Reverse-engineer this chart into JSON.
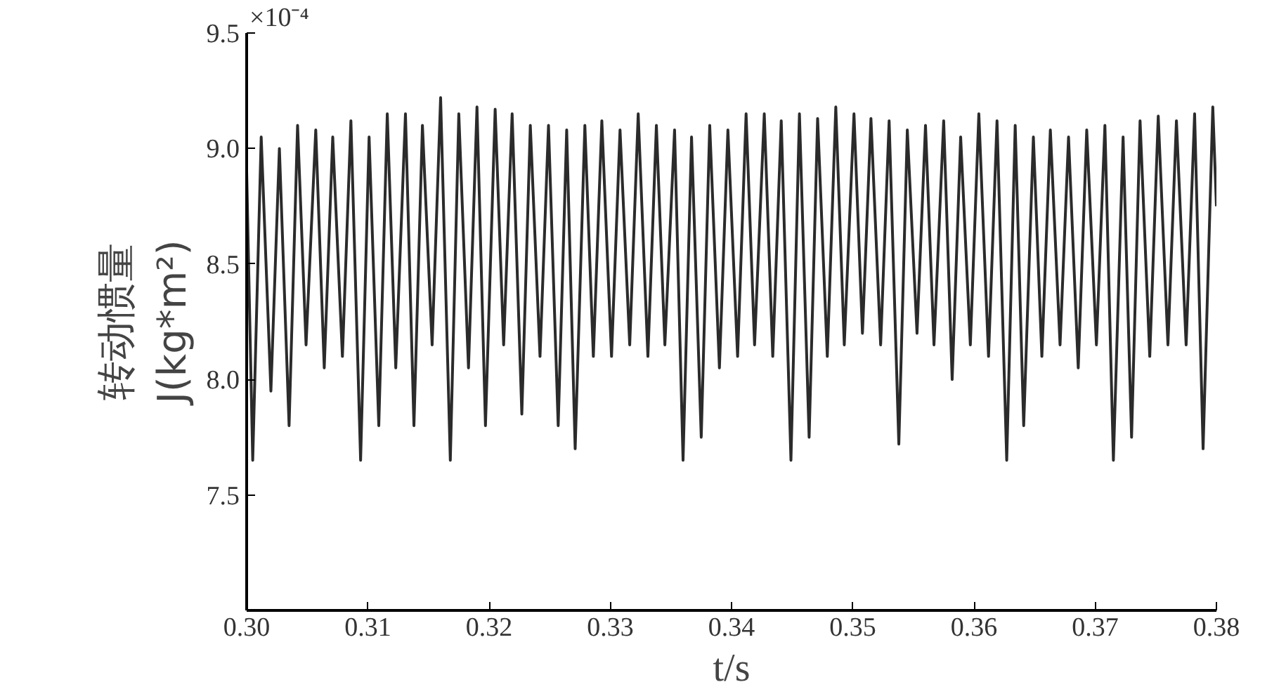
{
  "chart_data": {
    "type": "line",
    "xlabel": "t/s",
    "ylabel": "转动惯量\nJ(kg*m²)",
    "annotations": [
      "×10⁻⁴"
    ],
    "xlim": [
      0.3,
      0.38
    ],
    "ylim": [
      7.0,
      9.5
    ],
    "xticks": [
      {
        "value": 0.3,
        "label": "0.30"
      },
      {
        "value": 0.31,
        "label": "0.31"
      },
      {
        "value": 0.32,
        "label": "0.32"
      },
      {
        "value": 0.33,
        "label": "0.33"
      },
      {
        "value": 0.34,
        "label": "0.34"
      },
      {
        "value": 0.35,
        "label": "0.35"
      },
      {
        "value": 0.36,
        "label": "0.36"
      },
      {
        "value": 0.37,
        "label": "0.37"
      },
      {
        "value": 0.38,
        "label": "0.38"
      }
    ],
    "yticks": [
      7.5,
      {
        "value": 8.0,
        "label": "8.0"
      },
      8.5,
      {
        "value": 9.0,
        "label": "9.0"
      },
      9.5
    ],
    "grid": false,
    "marker": "none",
    "line_style": "solid",
    "series": [
      {
        "color": "#2b2b2b",
        "x": [
          0.3,
          0.3005,
          0.3012,
          0.302,
          0.3027,
          0.3035,
          0.3042,
          0.3049,
          0.3057,
          0.3064,
          0.3071,
          0.3079,
          0.3086,
          0.3094,
          0.3101,
          0.3109,
          0.3116,
          0.3123,
          0.3131,
          0.3138,
          0.3145,
          0.3153,
          0.316,
          0.3168,
          0.3175,
          0.3183,
          0.319,
          0.3197,
          0.3205,
          0.3212,
          0.3219,
          0.3227,
          0.3234,
          0.3242,
          0.3249,
          0.3257,
          0.3264,
          0.3271,
          0.3279,
          0.3286,
          0.3293,
          0.3301,
          0.3308,
          0.3316,
          0.3323,
          0.3331,
          0.3338,
          0.3345,
          0.3353,
          0.336,
          0.3367,
          0.3375,
          0.3382,
          0.339,
          0.3397,
          0.3405,
          0.3412,
          0.3419,
          0.3427,
          0.3434,
          0.3441,
          0.3449,
          0.3456,
          0.3464,
          0.3471,
          0.3479,
          0.3486,
          0.3493,
          0.3501,
          0.3508,
          0.3515,
          0.3523,
          0.353,
          0.3538,
          0.3545,
          0.3553,
          0.356,
          0.3567,
          0.3575,
          0.3582,
          0.3589,
          0.3597,
          0.3604,
          0.3612,
          0.3619,
          0.3627,
          0.3634,
          0.3641,
          0.3649,
          0.3656,
          0.3663,
          0.3671,
          0.3678,
          0.3686,
          0.3693,
          0.3701,
          0.3708,
          0.3715,
          0.3723,
          0.373,
          0.3737,
          0.3745,
          0.3752,
          0.376,
          0.3767,
          0.3775,
          0.3782,
          0.3789,
          0.3797,
          0.38
        ],
        "values": [
          8.9,
          7.65,
          9.05,
          7.95,
          9.0,
          7.8,
          9.1,
          8.15,
          9.08,
          8.05,
          9.05,
          8.1,
          9.12,
          7.65,
          9.05,
          7.8,
          9.15,
          8.05,
          9.15,
          7.8,
          9.1,
          8.15,
          9.22,
          7.65,
          9.15,
          8.05,
          9.18,
          7.8,
          9.17,
          8.15,
          9.15,
          7.85,
          9.1,
          8.1,
          9.1,
          7.8,
          9.08,
          7.7,
          9.1,
          8.1,
          9.12,
          8.1,
          9.08,
          8.15,
          9.15,
          8.1,
          9.1,
          8.15,
          9.08,
          7.65,
          9.05,
          7.75,
          9.1,
          8.05,
          9.08,
          8.1,
          9.15,
          8.15,
          9.15,
          8.1,
          9.12,
          7.65,
          9.15,
          7.75,
          9.13,
          8.1,
          9.18,
          8.15,
          9.15,
          8.2,
          9.13,
          8.15,
          9.12,
          7.72,
          9.08,
          8.2,
          9.1,
          8.15,
          9.12,
          8.0,
          9.05,
          8.15,
          9.15,
          8.1,
          9.12,
          7.65,
          9.1,
          7.8,
          9.05,
          8.1,
          9.08,
          8.15,
          9.05,
          8.05,
          9.08,
          8.15,
          9.1,
          7.65,
          9.05,
          7.75,
          9.12,
          8.1,
          9.14,
          8.15,
          9.12,
          8.15,
          9.15,
          7.7,
          9.18,
          8.75
        ]
      }
    ]
  }
}
